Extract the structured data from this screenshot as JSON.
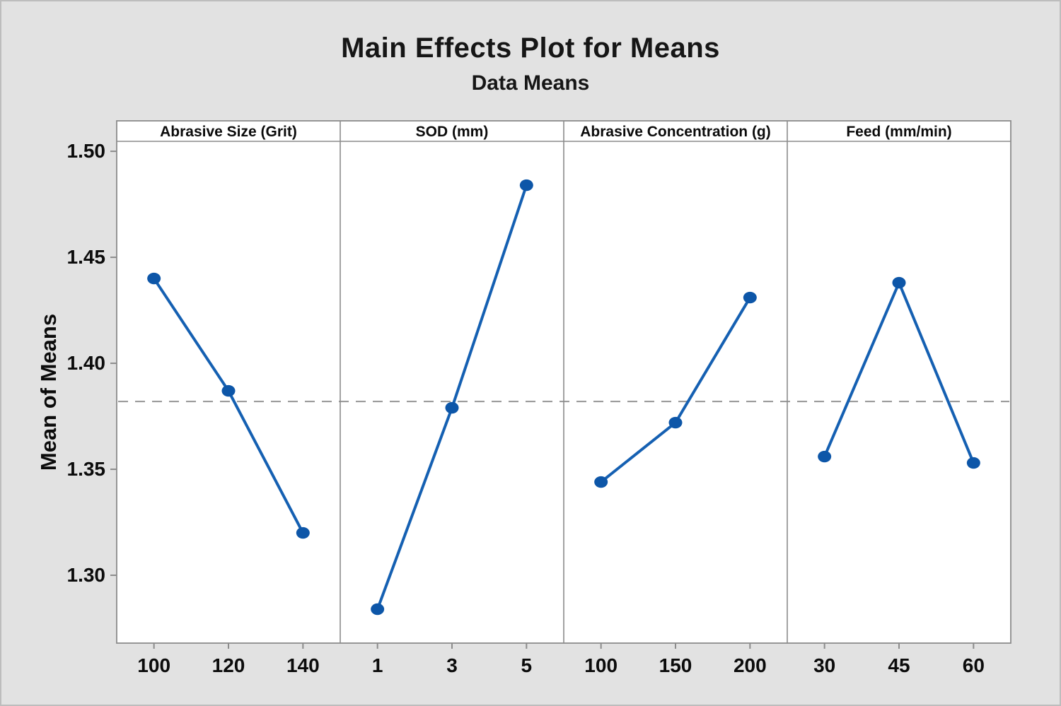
{
  "title": "Main Effects Plot for Means",
  "subtitle": "Data Means",
  "ylabel": "Mean of Means",
  "colors": {
    "background": "#e2e2e2",
    "panel_background": "#ffffff",
    "frame_border": "#8c8c8c",
    "tick": "#8c8c8c",
    "text": "#0b0b0b",
    "series_line": "#1560b2",
    "series_marker": "#0d56a8",
    "grand_mean_dashed": "#9b9b9b"
  },
  "chart_data": {
    "type": "line",
    "layout": "main-effects-plot-4-panels",
    "title": "Main Effects Plot for Means",
    "subtitle": "Data Means",
    "ylabel": "Mean of Means",
    "ylim": [
      1.268,
      1.5047
    ],
    "yticks": [
      "1.30",
      "1.35",
      "1.40",
      "1.45",
      "1.50"
    ],
    "grand_mean": 1.382,
    "grid": "off",
    "marker": "filled-circle",
    "panels": [
      {
        "label": "Abrasive Size (Grit)",
        "categories": [
          "100",
          "120",
          "140"
        ],
        "values": [
          1.44,
          1.387,
          1.32
        ]
      },
      {
        "label": "SOD (mm)",
        "categories": [
          "1",
          "3",
          "5"
        ],
        "values": [
          1.284,
          1.379,
          1.484
        ]
      },
      {
        "label": "Abrasive Concentration (g)",
        "categories": [
          "100",
          "150",
          "200"
        ],
        "values": [
          1.344,
          1.372,
          1.431
        ]
      },
      {
        "label": "Feed (mm/min)",
        "categories": [
          "30",
          "45",
          "60"
        ],
        "values": [
          1.356,
          1.438,
          1.353
        ]
      }
    ]
  }
}
